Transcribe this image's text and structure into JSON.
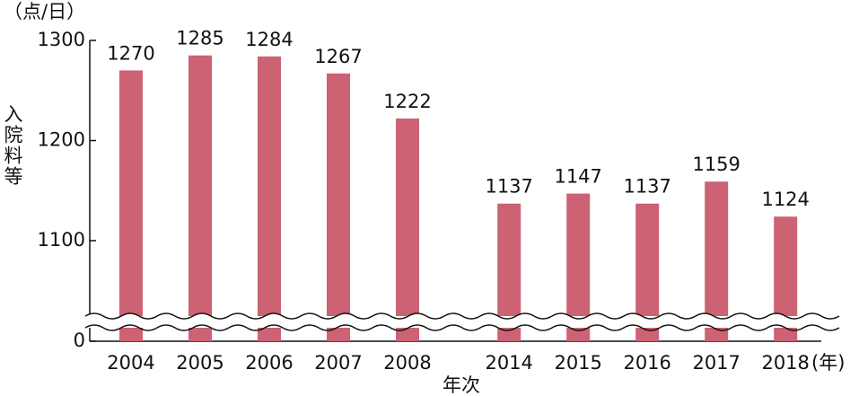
{
  "chart_data": {
    "type": "bar",
    "y_unit": "（点/日）",
    "ylabel": "入院料等",
    "xlabel": "年次",
    "x_unit": "(年)",
    "categories": [
      "2004",
      "2005",
      "2006",
      "2007",
      "2008",
      "2014",
      "2015",
      "2016",
      "2017",
      "2018"
    ],
    "values": [
      1270,
      1285,
      1284,
      1267,
      1222,
      1137,
      1147,
      1137,
      1159,
      1124
    ],
    "color": "#cc6273",
    "ylim": [
      0,
      1300
    ],
    "yticks": [
      0,
      1100,
      1200,
      1300
    ],
    "axis_break": true
  }
}
